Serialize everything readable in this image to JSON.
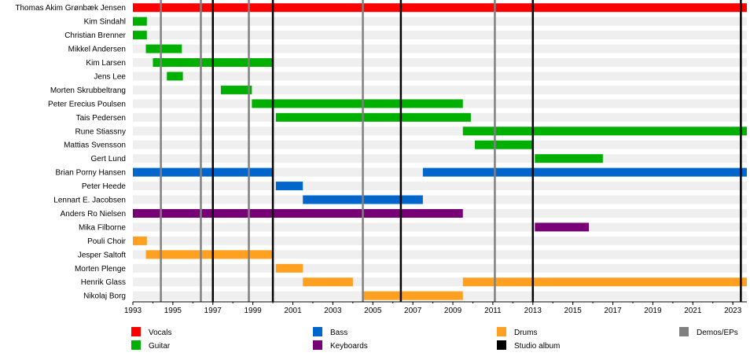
{
  "chart_data": {
    "type": "timeline",
    "xlim": [
      1993,
      2023.7
    ],
    "x_ticks": [
      "1993",
      "1995",
      "1997",
      "1999",
      "2001",
      "2003",
      "2005",
      "2007",
      "2009",
      "2011",
      "2013",
      "2015",
      "2017",
      "2019",
      "2021",
      "2023"
    ],
    "members": [
      "Thomas Akim Grønbæk Jensen",
      "Kim Sindahl",
      "Christian Brenner",
      "Mikkel Andersen",
      "Kim Larsen",
      "Jens Lee",
      "Morten Skrubbeltrang",
      "Peter Erecius Poulsen",
      "Tais Pedersen",
      "Rune Stiassny",
      "Mattias Svensson",
      "Gert Lund",
      "Brian Porny Hansen",
      "Peter Heede",
      "Lennart E. Jacobsen",
      "Anders Ro Nielsen",
      "Mika Filborne",
      "Pouli Choir",
      "Jesper Saltoft",
      "Morten Plenge",
      "Henrik Glass",
      "Nikolaj Borg"
    ],
    "roles": {
      "vocals": {
        "label": "Vocals",
        "color": "#ff0000"
      },
      "guitar": {
        "label": "Guitar",
        "color": "#00b000"
      },
      "bass": {
        "label": "Bass",
        "color": "#0066cc"
      },
      "keyboards": {
        "label": "Keyboards",
        "color": "#770077"
      },
      "drums": {
        "label": "Drums",
        "color": "#ffa020"
      },
      "studio": {
        "label": "Studio album",
        "color": "#000000"
      },
      "demos": {
        "label": "Demos/EPs",
        "color": "#808080"
      }
    },
    "bars": [
      {
        "member": 0,
        "role": "vocals",
        "start": 1993.0,
        "end": 2023.7
      },
      {
        "member": 1,
        "role": "guitar",
        "start": 1993.0,
        "end": 1993.7
      },
      {
        "member": 2,
        "role": "guitar",
        "start": 1993.0,
        "end": 1993.7
      },
      {
        "member": 3,
        "role": "guitar",
        "start": 1993.65,
        "end": 1995.45
      },
      {
        "member": 4,
        "role": "guitar",
        "start": 1994.0,
        "end": 2000.0
      },
      {
        "member": 5,
        "role": "guitar",
        "start": 1994.7,
        "end": 1995.5
      },
      {
        "member": 6,
        "role": "guitar",
        "start": 1997.4,
        "end": 1998.95
      },
      {
        "member": 7,
        "role": "guitar",
        "start": 1998.95,
        "end": 2009.5
      },
      {
        "member": 8,
        "role": "guitar",
        "start": 2000.15,
        "end": 2009.9
      },
      {
        "member": 9,
        "role": "guitar",
        "start": 2009.5,
        "end": 2023.7
      },
      {
        "member": 10,
        "role": "guitar",
        "start": 2010.1,
        "end": 2013.0
      },
      {
        "member": 11,
        "role": "guitar",
        "start": 2013.1,
        "end": 2016.5
      },
      {
        "member": 12,
        "role": "bass",
        "start": 1993.0,
        "end": 2000.0
      },
      {
        "member": 12,
        "role": "bass",
        "start": 2007.5,
        "end": 2023.7
      },
      {
        "member": 13,
        "role": "bass",
        "start": 2000.15,
        "end": 2001.5
      },
      {
        "member": 14,
        "role": "bass",
        "start": 2001.5,
        "end": 2007.5
      },
      {
        "member": 15,
        "role": "keyboards",
        "start": 1993.0,
        "end": 2009.5
      },
      {
        "member": 16,
        "role": "keyboards",
        "start": 2013.1,
        "end": 2015.8
      },
      {
        "member": 17,
        "role": "drums",
        "start": 1993.0,
        "end": 1993.7
      },
      {
        "member": 18,
        "role": "drums",
        "start": 1993.65,
        "end": 2000.0
      },
      {
        "member": 19,
        "role": "drums",
        "start": 2000.15,
        "end": 2001.5
      },
      {
        "member": 20,
        "role": "drums",
        "start": 2001.5,
        "end": 2004.0
      },
      {
        "member": 20,
        "role": "drums",
        "start": 2009.5,
        "end": 2023.7
      },
      {
        "member": 21,
        "role": "drums",
        "start": 2004.5,
        "end": 2009.5
      }
    ],
    "studio_lines": [
      1997.0,
      2000.0,
      2006.4,
      2013.0,
      2023.4
    ],
    "demo_lines": [
      1994.4,
      1996.4,
      1998.8,
      2004.5,
      2011.1
    ],
    "legend": [
      {
        "role": "vocals",
        "col": 0,
        "row": 0
      },
      {
        "role": "guitar",
        "col": 0,
        "row": 1
      },
      {
        "role": "bass",
        "col": 1,
        "row": 0
      },
      {
        "role": "keyboards",
        "col": 1,
        "row": 1
      },
      {
        "role": "drums",
        "col": 2,
        "row": 0
      },
      {
        "role": "studio",
        "col": 2,
        "row": 1
      },
      {
        "role": "demos",
        "col": 3,
        "row": 0
      }
    ]
  }
}
